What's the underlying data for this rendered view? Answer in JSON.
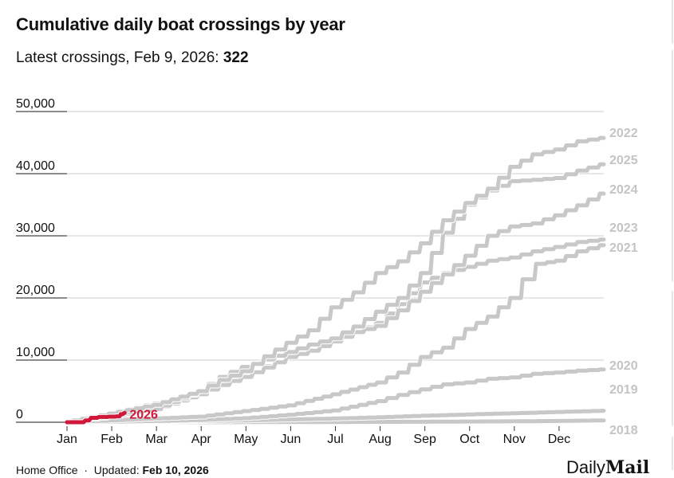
{
  "header": {
    "title": "Cumulative daily boat crossings by year",
    "subtitle_prefix": "Latest crossings, Feb 9, 2026: ",
    "subtitle_value": "322"
  },
  "footer": {
    "source": "Home Office",
    "updated_label": "Updated: ",
    "updated_value": "Feb 10, 2026"
  },
  "logo": {
    "daily": "Daily",
    "mail": "Mail"
  },
  "colors": {
    "highlight": "#d0193a",
    "series": "#c8c8c8",
    "grid": "#cccccc",
    "axis": "#666666"
  },
  "chart_data": {
    "type": "line",
    "title": "Cumulative daily boat crossings by year",
    "xlabel": "",
    "ylabel": "",
    "ylim": [
      0,
      50000
    ],
    "xlim": [
      0,
      12
    ],
    "grid": true,
    "y_ticks": [
      0,
      10000,
      20000,
      30000,
      40000,
      50000
    ],
    "y_tick_labels": [
      "0",
      "10,000",
      "20,000",
      "30,000",
      "40,000",
      "50,000"
    ],
    "x_ticks": [
      0,
      1,
      2,
      3,
      4,
      5,
      6,
      7,
      8,
      9,
      10,
      11
    ],
    "x_tick_labels": [
      "Jan",
      "Feb",
      "Mar",
      "Apr",
      "May",
      "Jun",
      "Jul",
      "Aug",
      "Sep",
      "Oct",
      "Nov",
      "Dec"
    ],
    "x_unit": "months since Jan 1",
    "series": [
      {
        "name": "2018",
        "label": "2018",
        "highlight": false,
        "x": [
          0,
          2,
          4,
          6,
          8,
          10,
          11,
          12
        ],
        "values": [
          0,
          10,
          20,
          40,
          80,
          150,
          200,
          300
        ]
      },
      {
        "name": "2019",
        "label": "2019",
        "highlight": false,
        "x": [
          0,
          1,
          2,
          3,
          4,
          5,
          6,
          7,
          8,
          9,
          10,
          11,
          12
        ],
        "values": [
          0,
          50,
          100,
          200,
          300,
          450,
          600,
          800,
          1050,
          1250,
          1450,
          1650,
          1850
        ]
      },
      {
        "name": "2020",
        "label": "2020",
        "highlight": false,
        "x": [
          0,
          1,
          2,
          3,
          4,
          5,
          6,
          7,
          7.5,
          8,
          8.5,
          9,
          9.5,
          10,
          10.5,
          11,
          11.5,
          12
        ],
        "values": [
          0,
          100,
          200,
          350,
          650,
          1200,
          1900,
          3400,
          4400,
          5300,
          6100,
          6400,
          7000,
          7200,
          7800,
          8000,
          8300,
          8500
        ]
      },
      {
        "name": "2021",
        "label": "2021",
        "highlight": false,
        "x": [
          0,
          1,
          2,
          3,
          4,
          5,
          6,
          7,
          7.5,
          8,
          8.5,
          9,
          9.5,
          10,
          10.3,
          10.6,
          11,
          11.5,
          12
        ],
        "values": [
          0,
          300,
          600,
          900,
          1800,
          2700,
          4500,
          6400,
          8000,
          10500,
          12000,
          15000,
          17000,
          20000,
          23000,
          25500,
          26000,
          27500,
          28500
        ]
      },
      {
        "name": "2023",
        "label": "2023",
        "highlight": false,
        "x": [
          0,
          1,
          2,
          3,
          3.5,
          4,
          4.5,
          5,
          5.5,
          6,
          6.5,
          7,
          7.5,
          8,
          8.5,
          9,
          9.5,
          10,
          10.5,
          11,
          11.5,
          12
        ],
        "values": [
          0,
          1500,
          3000,
          4500,
          6000,
          7200,
          9000,
          10500,
          11500,
          13500,
          14500,
          16000,
          19000,
          22500,
          24000,
          25000,
          26000,
          26500,
          27500,
          28200,
          29000,
          29400
        ]
      },
      {
        "name": "2024",
        "label": "2024",
        "highlight": false,
        "x": [
          0,
          1,
          2,
          3,
          3.5,
          4,
          4.5,
          5,
          5.5,
          6,
          6.5,
          7,
          7.5,
          8,
          8.5,
          9,
          9.5,
          10,
          10.5,
          11,
          11.5,
          12
        ],
        "values": [
          0,
          900,
          2000,
          4500,
          6000,
          7300,
          8800,
          10500,
          11500,
          13000,
          14500,
          15500,
          18000,
          21000,
          23800,
          26800,
          30000,
          31500,
          32000,
          33300,
          34900,
          36800
        ]
      },
      {
        "name": "2025",
        "label": "2025",
        "highlight": false,
        "x": [
          0,
          1,
          2,
          3,
          3.5,
          4,
          4.5,
          5,
          5.5,
          6,
          6.5,
          7,
          7.5,
          8,
          8.5,
          9,
          9.5,
          10,
          10.5,
          11,
          11.5,
          12
        ],
        "values": [
          0,
          1200,
          2100,
          5000,
          7300,
          8900,
          10100,
          11300,
          12500,
          13500,
          15400,
          17800,
          20000,
          24000,
          30500,
          35000,
          37300,
          38800,
          39000,
          39300,
          40500,
          41500
        ]
      },
      {
        "name": "2022",
        "label": "2022",
        "highlight": false,
        "x": [
          0,
          1,
          2,
          3,
          3.5,
          4,
          4.5,
          5,
          5.5,
          6,
          6.5,
          7,
          7.5,
          8,
          8.5,
          9,
          9.5,
          10,
          10.5,
          11,
          11.5,
          12
        ],
        "values": [
          0,
          1400,
          2800,
          5000,
          6800,
          8200,
          10600,
          12800,
          14800,
          18500,
          20900,
          24000,
          25900,
          28800,
          32500,
          35300,
          37600,
          41100,
          43100,
          43900,
          45200,
          45750
        ]
      },
      {
        "name": "2026",
        "label": "2026",
        "highlight": true,
        "x": [
          0,
          0.3,
          0.45,
          0.55,
          0.8,
          1.0,
          1.15,
          1.2,
          1.29
        ],
        "values": [
          0,
          0,
          300,
          700,
          850,
          900,
          950,
          1300,
          1500
        ]
      }
    ]
  }
}
